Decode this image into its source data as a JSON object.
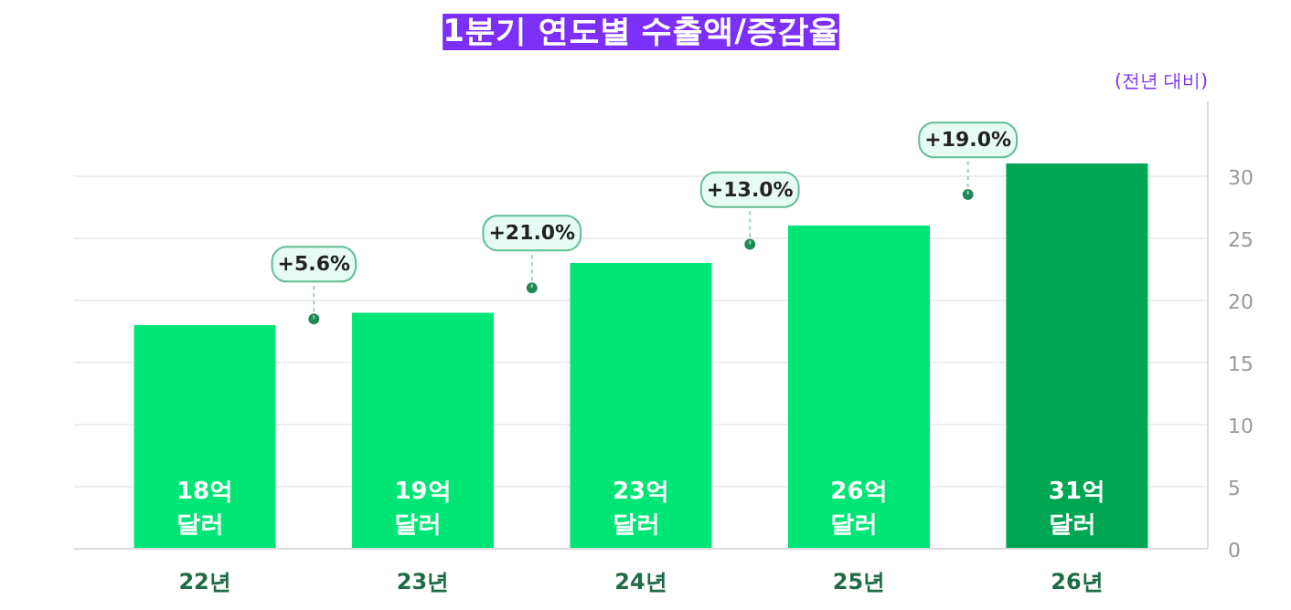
{
  "chart_data": {
    "type": "bar",
    "title": "1분기 연도별 수출액/증감율",
    "subtitle": "(전년 대비)",
    "categories": [
      "22년",
      "23년",
      "24년",
      "25년",
      "26년"
    ],
    "values": [
      18,
      19,
      23,
      26,
      31
    ],
    "colors": [
      "#00e676",
      "#00e676",
      "#00e676",
      "#00e676",
      "#00a651"
    ],
    "value_labels": [
      "18억\n달러",
      "19억\n달러",
      "23억\n달러",
      "26억\n달러",
      "31억\n달러"
    ],
    "annotations": [
      "+5.6%",
      "+21.0%",
      "+13.0%",
      "+19.0%"
    ],
    "ylim": [
      0,
      36
    ],
    "yticks": [
      0,
      5,
      10,
      15,
      20,
      25,
      30
    ],
    "grid": "y"
  }
}
